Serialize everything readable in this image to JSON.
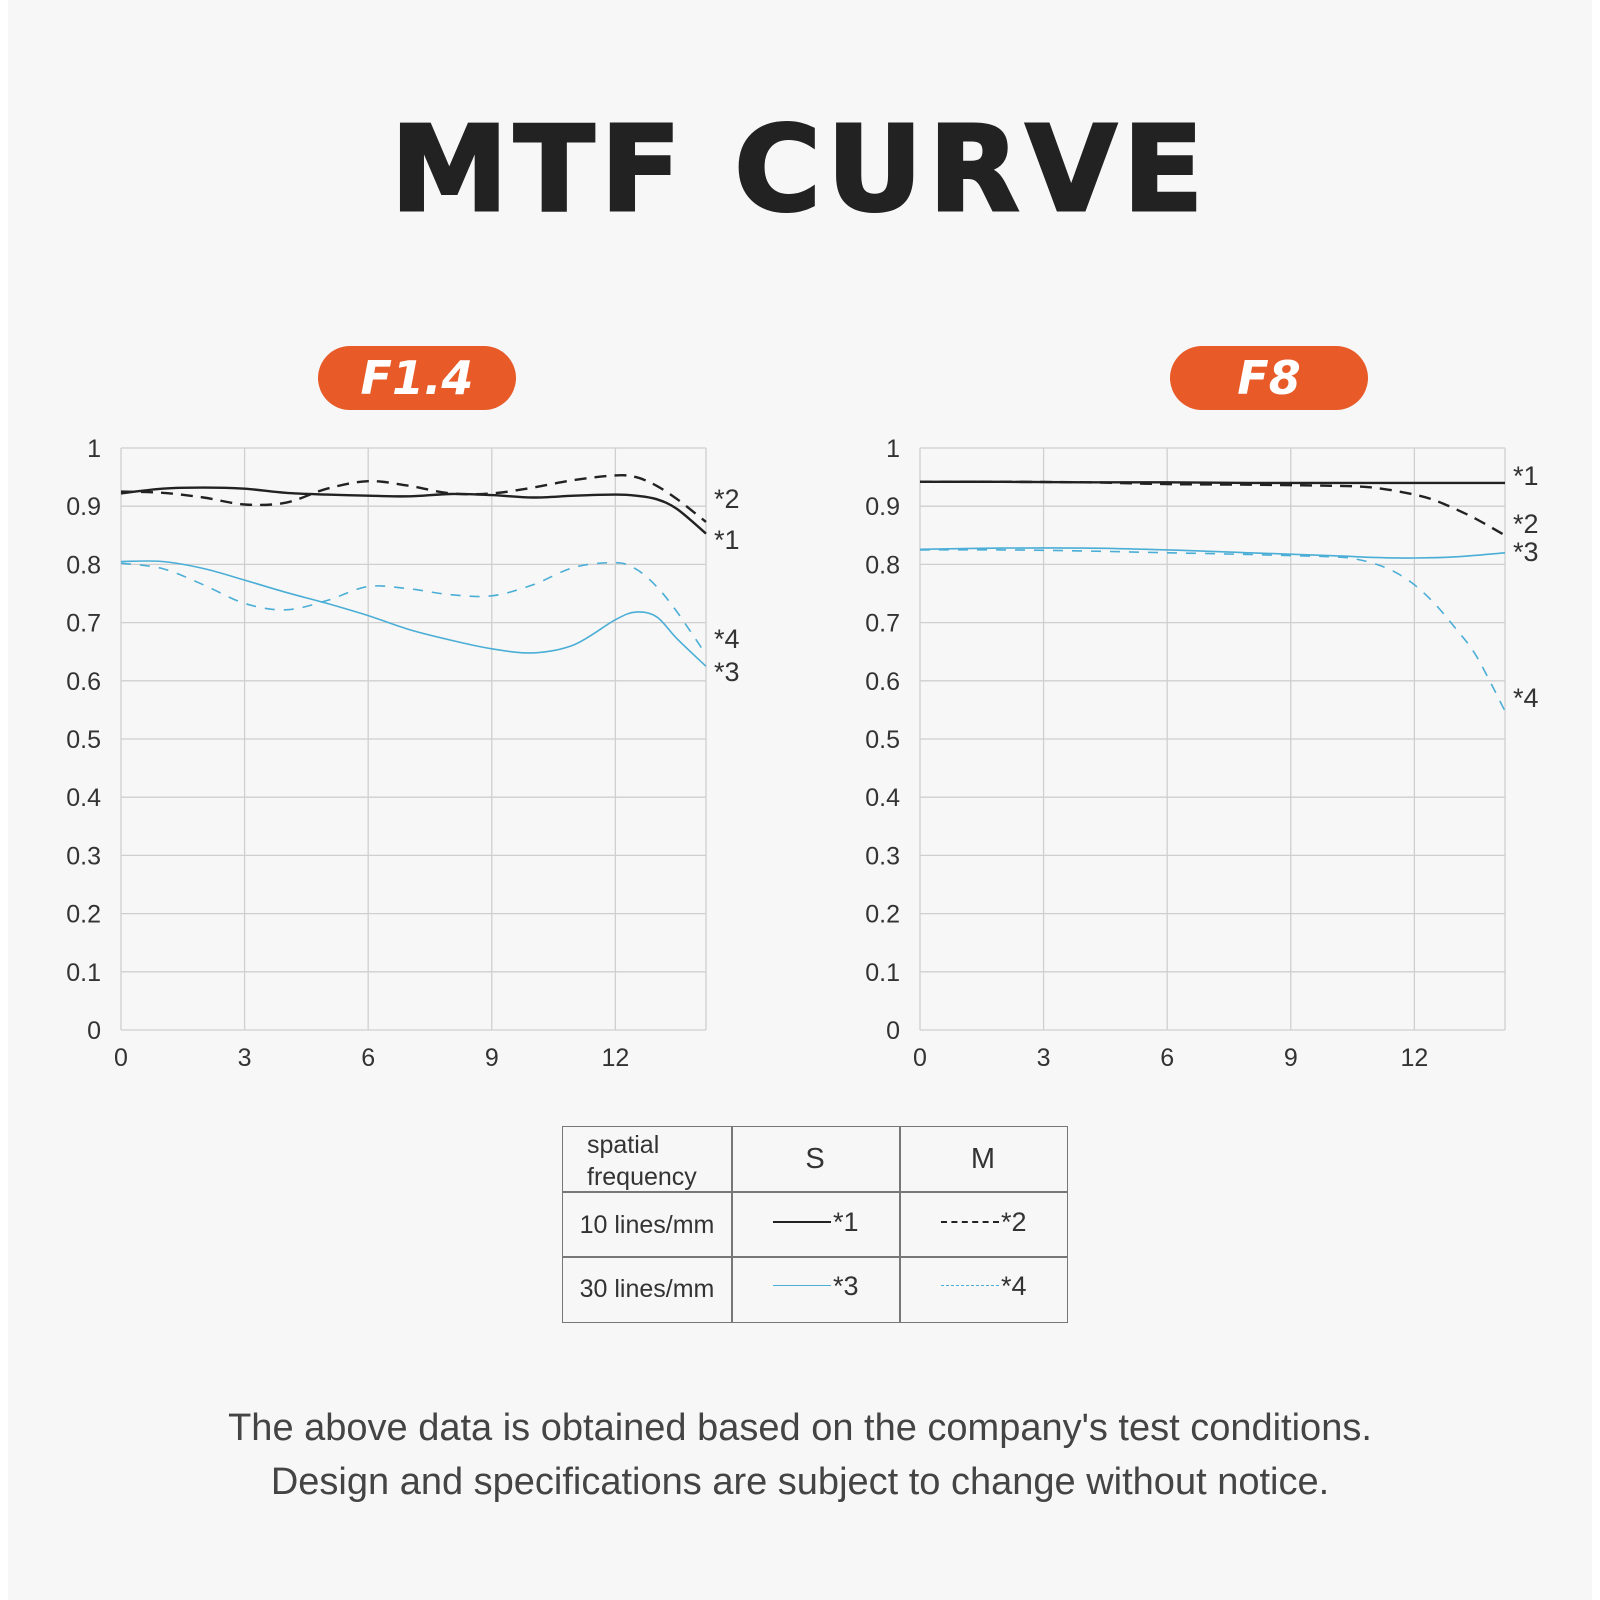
{
  "header": {
    "title": "MTF CURVE"
  },
  "colors": {
    "accent": "#e85a28",
    "line_10": "#222222",
    "line_30": "#4aaed6",
    "grid": "#cfcfcf"
  },
  "chart_data": [
    {
      "type": "line",
      "title": "F1.4",
      "xlim": [
        0,
        14.2
      ],
      "ylim": [
        0,
        1
      ],
      "x_ticks": [
        "0",
        "3",
        "6",
        "9",
        "12"
      ],
      "y_ticks": [
        "0",
        "0.1",
        "0.2",
        "0.3",
        "0.4",
        "0.5",
        "0.6",
        "0.7",
        "0.8",
        "0.9",
        "1"
      ],
      "grid": true,
      "series": [
        {
          "name": "*1",
          "color": "#222222",
          "dash": "solid",
          "x": [
            0,
            1,
            2,
            3,
            4,
            5,
            6,
            7,
            8,
            9,
            10,
            11,
            12,
            12.5,
            13,
            13.5,
            14.2
          ],
          "y": [
            0.922,
            0.93,
            0.932,
            0.93,
            0.923,
            0.92,
            0.918,
            0.917,
            0.921,
            0.919,
            0.915,
            0.918,
            0.92,
            0.918,
            0.912,
            0.895,
            0.853
          ]
        },
        {
          "name": "*2",
          "color": "#222222",
          "dash": "dashed",
          "x": [
            0,
            1,
            2,
            3,
            4,
            5,
            6,
            7,
            8,
            9,
            10,
            11,
            12,
            12.5,
            13,
            13.5,
            14.2
          ],
          "y": [
            0.925,
            0.923,
            0.915,
            0.903,
            0.906,
            0.93,
            0.943,
            0.935,
            0.922,
            0.922,
            0.932,
            0.945,
            0.953,
            0.95,
            0.935,
            0.912,
            0.873
          ]
        },
        {
          "name": "*3",
          "color": "#4aaed6",
          "dash": "solid",
          "x": [
            0,
            1,
            2,
            3,
            4,
            5,
            6,
            7,
            8,
            9,
            10,
            11,
            12,
            12.5,
            13,
            13.5,
            14.2
          ],
          "y": [
            0.805,
            0.805,
            0.793,
            0.773,
            0.752,
            0.733,
            0.712,
            0.688,
            0.67,
            0.655,
            0.648,
            0.662,
            0.705,
            0.718,
            0.71,
            0.672,
            0.625
          ]
        },
        {
          "name": "*4",
          "color": "#4aaed6",
          "dash": "dashed",
          "x": [
            0,
            1,
            2,
            3,
            4,
            5,
            6,
            7,
            8,
            9,
            10,
            11,
            12,
            12.5,
            13,
            13.5,
            14.2
          ],
          "y": [
            0.802,
            0.793,
            0.765,
            0.733,
            0.722,
            0.738,
            0.762,
            0.758,
            0.748,
            0.746,
            0.765,
            0.795,
            0.803,
            0.792,
            0.762,
            0.718,
            0.645
          ]
        }
      ],
      "annotations": [
        "*2",
        "*1",
        "*4",
        "*3"
      ]
    },
    {
      "type": "line",
      "title": "F8",
      "xlim": [
        0,
        14.2
      ],
      "ylim": [
        0,
        1
      ],
      "x_ticks": [
        "0",
        "3",
        "6",
        "9",
        "12"
      ],
      "y_ticks": [
        "0",
        "0.1",
        "0.2",
        "0.3",
        "0.4",
        "0.5",
        "0.6",
        "0.7",
        "0.8",
        "0.9",
        "1"
      ],
      "grid": true,
      "series": [
        {
          "name": "*1",
          "color": "#222222",
          "dash": "solid",
          "x": [
            0,
            2,
            4,
            6,
            8,
            10,
            12,
            14.2
          ],
          "y": [
            0.942,
            0.942,
            0.941,
            0.941,
            0.94,
            0.94,
            0.94,
            0.94
          ]
        },
        {
          "name": "*2",
          "color": "#222222",
          "dash": "dashed",
          "x": [
            0,
            2,
            4,
            6,
            8,
            10,
            11,
            12,
            12.5,
            13,
            13.5,
            14.2
          ],
          "y": [
            0.942,
            0.942,
            0.941,
            0.938,
            0.937,
            0.935,
            0.932,
            0.92,
            0.91,
            0.895,
            0.878,
            0.85
          ]
        },
        {
          "name": "*3",
          "color": "#4aaed6",
          "dash": "solid",
          "x": [
            0,
            2,
            4,
            6,
            8,
            10,
            11,
            12,
            13,
            14.2
          ],
          "y": [
            0.826,
            0.828,
            0.828,
            0.825,
            0.82,
            0.815,
            0.812,
            0.811,
            0.813,
            0.82
          ]
        },
        {
          "name": "*4",
          "color": "#4aaed6",
          "dash": "dashed",
          "x": [
            0,
            2,
            4,
            6,
            8,
            10,
            10.5,
            11,
            11.5,
            12,
            12.5,
            13,
            13.5,
            14.2
          ],
          "y": [
            0.825,
            0.825,
            0.823,
            0.82,
            0.817,
            0.813,
            0.81,
            0.802,
            0.788,
            0.765,
            0.732,
            0.69,
            0.643,
            0.548
          ]
        }
      ],
      "annotations": [
        "*1",
        "*2",
        "*3",
        "*4"
      ]
    }
  ],
  "legend_table": {
    "header": {
      "col0": [
        "spatial",
        "frequency"
      ],
      "col1": "S",
      "col2": "M"
    },
    "rows": [
      {
        "label": "10 lines/mm",
        "s": "*1",
        "m": "*2"
      },
      {
        "label": "30 lines/mm",
        "s": "*3",
        "m": "*4"
      }
    ]
  },
  "footer": {
    "line1": "The above data is obtained based on the company's test conditions.",
    "line2": "Design and specifications are subject to change without notice."
  }
}
